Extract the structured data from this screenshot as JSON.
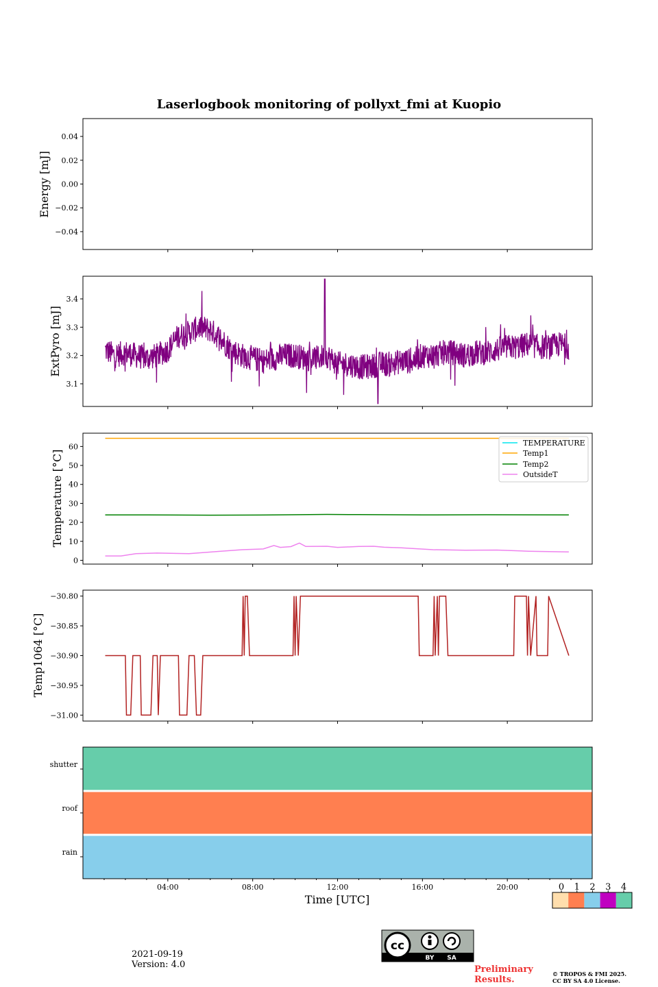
{
  "chart_data": {
    "title": "Laserlogbook monitoring of pollyxt_fmi at Kuopio",
    "type": "line",
    "time_axis": {
      "xlabel": "Time [UTC]",
      "xlim_hours": [
        0.0,
        24.0
      ],
      "ticks_hours": [
        4,
        8,
        12,
        16,
        20
      ],
      "tick_labels": [
        "04:00",
        "08:00",
        "12:00",
        "16:00",
        "20:00"
      ]
    },
    "panels": [
      {
        "type": "line",
        "ylabel": "Energy [mJ]",
        "ylim": [
          -0.055,
          0.055
        ],
        "yticks": [
          -0.04,
          -0.02,
          0.0,
          0.02,
          0.04
        ],
        "ytick_labels": [
          "−0.04",
          "−0.02",
          "0.00",
          "0.02",
          "0.04"
        ],
        "series": []
      },
      {
        "type": "line",
        "ylabel": "ExtPyro [mJ]",
        "ylim": [
          3.02,
          3.48
        ],
        "yticks": [
          3.1,
          3.2,
          3.3,
          3.4
        ],
        "ytick_labels": [
          "3.1",
          "3.2",
          "3.3",
          "3.4"
        ],
        "series": [
          {
            "name": "ExtPyro",
            "color": "#800080",
            "x": [
              1.05,
              1.5,
              2.0,
              2.5,
              3.0,
              3.5,
              4.0,
              4.5,
              5.0,
              5.5,
              6.0,
              6.5,
              7.0,
              7.5,
              8.0,
              8.5,
              9.0,
              9.5,
              10.0,
              10.5,
              11.0,
              11.5,
              12.0,
              12.5,
              13.0,
              13.5,
              14.0,
              14.5,
              15.0,
              15.5,
              16.0,
              16.5,
              17.0,
              17.5,
              18.0,
              18.5,
              19.0,
              19.5,
              20.0,
              20.5,
              21.0,
              21.5,
              22.0,
              22.5,
              22.9
            ],
            "y": [
              3.22,
              3.2,
              3.21,
              3.2,
              3.19,
              3.2,
              3.22,
              3.27,
              3.28,
              3.3,
              3.29,
              3.26,
              3.22,
              3.2,
              3.19,
              3.18,
              3.19,
              3.2,
              3.2,
              3.19,
              3.19,
              3.2,
              3.17,
              3.17,
              3.16,
              3.16,
              3.17,
              3.17,
              3.18,
              3.18,
              3.2,
              3.2,
              3.21,
              3.21,
              3.2,
              3.21,
              3.21,
              3.22,
              3.23,
              3.23,
              3.24,
              3.23,
              3.23,
              3.24,
              3.23
            ],
            "min": 3.03,
            "max": 3.47
          }
        ]
      },
      {
        "type": "line",
        "ylabel": "Temperature [°C]",
        "ylim": [
          -2,
          67
        ],
        "yticks": [
          0,
          10,
          20,
          30,
          40,
          50,
          60
        ],
        "ytick_labels": [
          "0",
          "10",
          "20",
          "30",
          "40",
          "50",
          "60"
        ],
        "legend": "top-right",
        "series": [
          {
            "name": "TEMPERATURE",
            "color": "#00e5ee",
            "x": [],
            "y": []
          },
          {
            "name": "Temp1",
            "color": "#ffa500",
            "x": [
              1.05,
              22.9
            ],
            "y": [
              64.3,
              64.3
            ]
          },
          {
            "name": "Temp2",
            "color": "#008000",
            "x": [
              1.05,
              3.0,
              6.0,
              9.0,
              11.5,
              13.0,
              16.0,
              19.0,
              22.9
            ],
            "y": [
              23.9,
              23.9,
              23.8,
              23.9,
              24.2,
              24.1,
              23.9,
              24.0,
              23.9
            ]
          },
          {
            "name": "OutsideT",
            "color": "#ee82ee",
            "x": [
              1.05,
              1.8,
              2.5,
              3.5,
              5.0,
              6.5,
              7.5,
              8.5,
              9.0,
              9.3,
              9.8,
              10.2,
              10.5,
              11.5,
              12.0,
              13.0,
              13.7,
              14.2,
              15.0,
              16.5,
              18.0,
              19.5,
              21.0,
              22.9
            ],
            "y": [
              2.3,
              2.3,
              3.5,
              3.8,
              3.5,
              4.8,
              5.6,
              6.0,
              7.8,
              6.8,
              7.2,
              9.1,
              7.3,
              7.4,
              6.8,
              7.3,
              7.4,
              6.9,
              6.6,
              5.6,
              5.3,
              5.4,
              4.8,
              4.4
            ]
          }
        ]
      },
      {
        "type": "line",
        "ylabel": "Temp1064 [°C]",
        "ylim": [
          -31.01,
          -30.79
        ],
        "yticks": [
          -31.0,
          -30.95,
          -30.9,
          -30.85,
          -30.8
        ],
        "ytick_labels": [
          "−31.00",
          "−30.95",
          "−30.90",
          "−30.85",
          "−30.80"
        ],
        "series": [
          {
            "name": "Temp1064",
            "color": "#b22222",
            "x": [
              1.05,
              2.0,
              2.05,
              2.25,
              2.35,
              2.7,
              2.75,
              3.2,
              3.3,
              3.5,
              3.55,
              3.65,
              4.5,
              4.55,
              4.9,
              5.0,
              5.25,
              5.35,
              5.55,
              5.65,
              5.8,
              6.0,
              6.1,
              7.5,
              7.55,
              7.6,
              7.65,
              7.75,
              7.85,
              9.9,
              9.95,
              10.0,
              10.05,
              10.15,
              10.25,
              10.3,
              15.8,
              15.85,
              16.5,
              16.55,
              16.6,
              16.7,
              16.75,
              16.8,
              16.85,
              17.1,
              17.2,
              20.3,
              20.35,
              20.9,
              20.95,
              21.0,
              21.1,
              21.35,
              21.4,
              21.9,
              21.95,
              22.9
            ],
            "y": [
              -30.9,
              -30.9,
              -31.0,
              -31.0,
              -30.9,
              -30.9,
              -31.0,
              -31.0,
              -30.9,
              -30.9,
              -31.0,
              -30.9,
              -30.9,
              -31.0,
              -31.0,
              -30.9,
              -30.9,
              -31.0,
              -31.0,
              -30.9,
              -30.9,
              -30.9,
              -30.9,
              -30.9,
              -30.8,
              -30.9,
              -30.8,
              -30.8,
              -30.9,
              -30.9,
              -30.8,
              -30.9,
              -30.8,
              -30.9,
              -30.8,
              -30.8,
              -30.8,
              -30.9,
              -30.9,
              -30.8,
              -30.9,
              -30.8,
              -30.9,
              -30.8,
              -30.8,
              -30.8,
              -30.9,
              -30.9,
              -30.8,
              -30.8,
              -30.9,
              -30.8,
              -30.9,
              -30.8,
              -30.9,
              -30.9,
              -30.8,
              -30.9
            ]
          }
        ]
      },
      {
        "type": "heatmap",
        "rows": [
          "shutter",
          "roof",
          "rain"
        ],
        "row_colors": [
          "#66cdaa",
          "#ff7f50",
          "#87ceeb"
        ],
        "values": [
          4,
          1,
          2
        ],
        "colorbar": {
          "ticks": [
            "0",
            "1",
            "2",
            "3",
            "4"
          ],
          "colors": [
            "#ffdead",
            "#ff7f50",
            "#87ceeb",
            "#c000c0",
            "#66cdaa"
          ]
        }
      }
    ]
  },
  "footer": {
    "date": "2021-09-19",
    "version": "Version: 4.0",
    "preliminary_line1": "Preliminary",
    "preliminary_line2": "Results.",
    "copyright_line1": "© TROPOS & FMI 2025.",
    "copyright_line2": "CC BY SA 4.0 License.",
    "license_badge": {
      "by": "BY",
      "sa": "SA"
    }
  }
}
